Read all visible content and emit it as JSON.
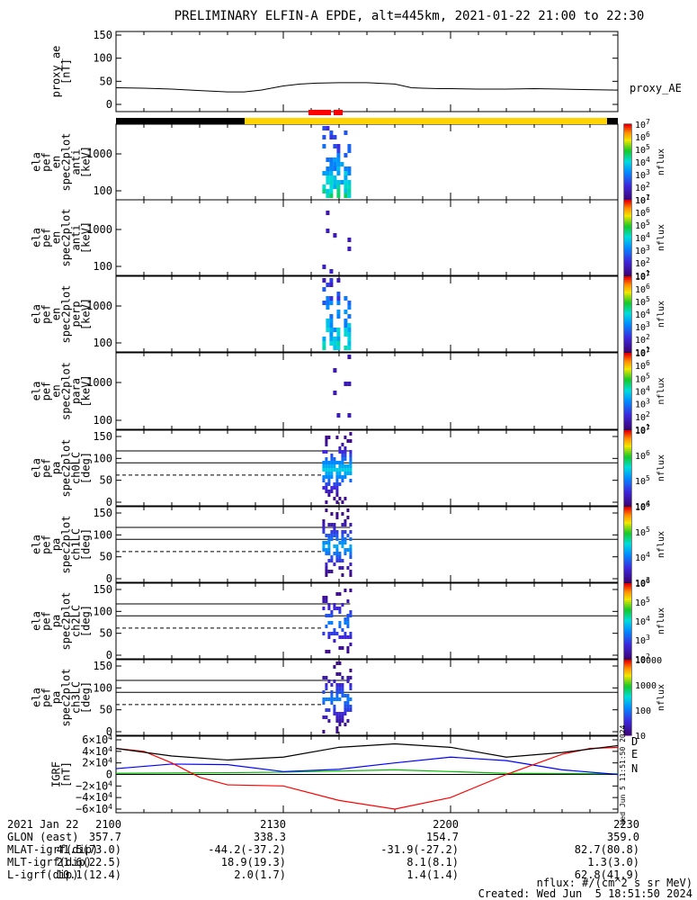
{
  "title": "PRELIMINARY ELFIN-A EPDE, alt=445km, 2021-01-22 21:00 to 22:30",
  "colors": {
    "black": "#000000",
    "red": "#ff0000",
    "yellow": "#ffd400",
    "green": "#00bb00",
    "blue": "#0000ff"
  },
  "ae_panel": {
    "ylabel_lines": [
      "proxy_ae",
      "[nT]"
    ],
    "ticks": [
      "150",
      "100",
      "50",
      "0"
    ],
    "series_label": "proxy_AE"
  },
  "status_bar": {
    "dark": "#000000",
    "light": "#ffd400",
    "marker": "#ff0000"
  },
  "energy_panels": [
    {
      "ylabel_lines": [
        "ela",
        "pef",
        "en",
        "spec2plot",
        "anti",
        "[keV]"
      ],
      "ticks": [
        "1000",
        "100"
      ],
      "cb_labels": [
        "10^7",
        "10^6",
        "10^5",
        "10^4",
        "10^3",
        "10^2",
        "10^1"
      ],
      "cb_title": "nflux"
    },
    {
      "ylabel_lines": [
        "ela",
        "pef",
        "en",
        "spec2plot",
        "anti",
        "[keV]"
      ],
      "ticks": [
        "1000",
        "100"
      ],
      "cb_labels": [
        "10^7",
        "10^6",
        "10^5",
        "10^4",
        "10^3",
        "10^2",
        "10^1"
      ],
      "cb_title": "nflux"
    },
    {
      "ylabel_lines": [
        "ela",
        "pef",
        "en",
        "spec2plot",
        "perp",
        "[keV]"
      ],
      "ticks": [
        "1000",
        "100"
      ],
      "cb_labels": [
        "10^7",
        "10^6",
        "10^5",
        "10^4",
        "10^3",
        "10^2",
        "10^1"
      ],
      "cb_title": "nflux"
    },
    {
      "ylabel_lines": [
        "ela",
        "pef",
        "en",
        "spec2plot",
        "para",
        "[keV]"
      ],
      "ticks": [
        "1000",
        "100"
      ],
      "cb_labels": [
        "10^7",
        "10^6",
        "10^5",
        "10^4",
        "10^3",
        "10^2",
        "10^1"
      ],
      "cb_title": "nflux"
    }
  ],
  "pa_panels": [
    {
      "ylabel_lines": [
        "ela",
        "pef",
        "pa",
        "spec2plot",
        "ch0LC",
        "[deg]"
      ],
      "ticks": [
        "150",
        "100",
        "50",
        "0"
      ],
      "cb_labels": [
        "10^7",
        "10^6",
        "10^5",
        "10^4"
      ],
      "cb_title": "nflux"
    },
    {
      "ylabel_lines": [
        "ela",
        "pef",
        "pa",
        "spec2plot",
        "ch1LC",
        "[deg]"
      ],
      "ticks": [
        "150",
        "100",
        "50",
        "0"
      ],
      "cb_labels": [
        "10^6",
        "10^5",
        "10^4",
        "10^3"
      ],
      "cb_title": "nflux"
    },
    {
      "ylabel_lines": [
        "ela",
        "pef",
        "pa",
        "spec2plot",
        "ch2LC",
        "[deg]"
      ],
      "ticks": [
        "150",
        "100",
        "50",
        "0"
      ],
      "cb_labels": [
        "10^6",
        "10^5",
        "10^4",
        "10^3",
        "10^2"
      ],
      "cb_title": "nflux"
    },
    {
      "ylabel_lines": [
        "ela",
        "pef",
        "pa",
        "spec2plot",
        "ch3LC",
        "[deg]"
      ],
      "ticks": [
        "150",
        "100",
        "50",
        "0"
      ],
      "cb_labels": [
        "10000",
        "1000",
        "100",
        "10"
      ],
      "cb_title": "nflux"
    }
  ],
  "igrf_panel": {
    "ylabel_lines": [
      "IGRF",
      "[nT]"
    ],
    "ticks": [
      "6×10^4",
      "4×10^4",
      "2×10^4",
      "0",
      "−2×10^4",
      "−4×10^4",
      "−6×10^4"
    ],
    "legend": [
      "D",
      "E",
      "N"
    ],
    "side_note": "Wed Jun  5 11:51:50 2024"
  },
  "chart_data": [
    {
      "type": "line",
      "title": "proxy_ae",
      "x_unit": "minutes after 21:00",
      "ylim": [
        0,
        160
      ],
      "series": [
        {
          "name": "proxy_AE",
          "x": [
            0,
            5,
            10,
            15,
            20,
            23,
            26,
            30,
            33,
            36,
            40,
            45,
            50,
            53,
            55,
            58,
            60,
            65,
            70,
            75,
            80,
            85,
            90
          ],
          "y": [
            36,
            35,
            33,
            30,
            27,
            27,
            31,
            40,
            44,
            46,
            47,
            47,
            44,
            36,
            35,
            34,
            34,
            33,
            33,
            34,
            33,
            32,
            31
          ]
        }
      ]
    },
    {
      "type": "heatmap",
      "title": "ela_pef_en_spec2plot (anti / anti / perp / para) and pa spec2plot ch0LC..ch3LC",
      "x_unit": "minutes after 21:00",
      "active_interval": [
        37,
        41
      ],
      "energy_ylim_keV": [
        60,
        7000
      ],
      "pa_ylim_deg": [
        0,
        180
      ],
      "loss_cone_deg": [
        62,
        117
      ],
      "colorbar_range_nflux": [
        10,
        10000000
      ]
    },
    {
      "type": "line",
      "title": "IGRF",
      "x_unit": "minutes after 21:00",
      "ylim": [
        -65000,
        65000
      ],
      "series": [
        {
          "name": "N",
          "x": [
            0,
            10,
            20,
            30,
            40,
            50,
            60,
            70,
            80,
            90
          ],
          "y": [
            2000,
            2500,
            3000,
            4000,
            6000,
            8000,
            5000,
            2000,
            1500,
            1000
          ]
        },
        {
          "name": "E",
          "x": [
            0,
            10,
            20,
            30,
            40,
            50,
            60,
            70,
            80,
            90
          ],
          "y": [
            10000,
            18000,
            17000,
            5000,
            9000,
            20000,
            30000,
            24000,
            8000,
            0
          ]
        },
        {
          "name": "D",
          "x": [
            0,
            5,
            10,
            15,
            20,
            30,
            40,
            50,
            60,
            70,
            80,
            85,
            90
          ],
          "y": [
            45000,
            40000,
            20000,
            -5000,
            -18000,
            -20000,
            -45000,
            -60000,
            -40000,
            0,
            35000,
            45000,
            47000
          ]
        },
        {
          "name": "total",
          "x": [
            0,
            10,
            20,
            30,
            40,
            50,
            60,
            70,
            80,
            90
          ],
          "y": [
            45000,
            32000,
            25000,
            30000,
            47000,
            53000,
            47000,
            30000,
            38000,
            50000
          ]
        }
      ]
    }
  ],
  "footer": {
    "row_labels": [
      "2021 Jan 22",
      "GLON (east)",
      "MLAT-igrf(dip)",
      "MLT-igrf(dip)",
      "L-igrf(dip)"
    ],
    "columns": [
      [
        "2100",
        "357.7",
        "41.5(73.0)",
        "21.6(22.5)",
        "10.1(12.4)"
      ],
      [
        "2130",
        "338.3",
        "-44.2(-37.2)",
        "18.9(19.3)",
        "2.0(1.7)"
      ],
      [
        "2200",
        "154.7",
        "-31.9(-27.2)",
        "8.1(8.1)",
        "1.4(1.4)"
      ],
      [
        "2230",
        "359.0",
        "82.7(80.8)",
        "1.3(3.0)",
        "62.8(41.9)"
      ]
    ],
    "units_note": "nflux: #/(cm^2 s sr MeV)",
    "created": "Created: Wed Jun  5 18:51:50 2024"
  }
}
